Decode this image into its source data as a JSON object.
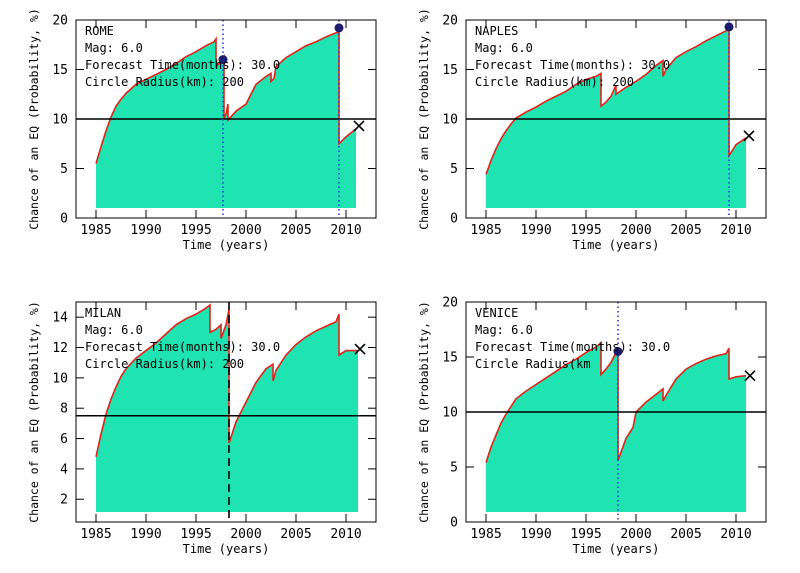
{
  "chart_data": [
    {
      "type": "area",
      "xlabel": "Time (years)",
      "ylabel": "Chance of an EQ (Probability, %)",
      "xlim": [
        1983,
        2013
      ],
      "ylim": [
        0,
        20
      ],
      "xticks": [
        1985,
        1990,
        1995,
        2000,
        2005,
        2010
      ],
      "yticks": [
        0,
        5,
        10,
        15,
        20
      ],
      "threshold": 10,
      "annotations": [
        "ROME",
        "Mag: 6.0",
        "Forecast Time(months): 30.0",
        "Circle Radius(km): 200"
      ],
      "series": [
        {
          "x": [
            1985.0,
            1985.5,
            1986.0,
            1986.5,
            1987.0,
            1987.5,
            1988.0,
            1989.0,
            1990.0,
            1991.0,
            1992.0,
            1993.0,
            1994.0,
            1995.0,
            1996.0,
            1996.8,
            1997.0,
            1997.001,
            1997.5,
            1997.6,
            1997.8,
            1997.801,
            1998.0,
            1998.2,
            1998.201,
            1999.0,
            2000.0,
            2001.0,
            2002.0,
            2002.5,
            2002.501,
            2002.8,
            2003.0,
            2004.0,
            2005.0,
            2006.0,
            2007.0,
            2008.0,
            2009.0,
            2009.3,
            2009.301,
            2010.0,
            2011.0
          ],
          "y": [
            5.5,
            7.2,
            8.8,
            10.2,
            11.3,
            12.0,
            12.6,
            13.5,
            14.0,
            14.5,
            15.0,
            15.6,
            16.3,
            16.8,
            17.4,
            17.8,
            18.1,
            15.3,
            15.8,
            16.0,
            16.3,
            10.0,
            10.5,
            11.5,
            9.9,
            10.8,
            11.5,
            13.5,
            14.3,
            14.6,
            13.8,
            14.1,
            15.3,
            16.2,
            16.8,
            17.4,
            17.8,
            18.3,
            18.7,
            18.8,
            7.5,
            8.2,
            9.0
          ]
        }
      ],
      "events": [
        {
          "x": 1997.7,
          "y": 16.0
        },
        {
          "x": 2009.3,
          "y": 19.2
        }
      ],
      "current": {
        "x": 2011.3,
        "y": 9.3
      },
      "event_lines": [
        {
          "x": 1997.7,
          "style": "dotted"
        },
        {
          "x": 2009.3,
          "style": "dotted"
        }
      ]
    },
    {
      "type": "area",
      "xlabel": "Time (years)",
      "ylabel": "Chance of an EQ (Probability, %)",
      "xlim": [
        1983,
        2013
      ],
      "ylim": [
        0,
        20
      ],
      "xticks": [
        1985,
        1990,
        1995,
        2000,
        2005,
        2010
      ],
      "yticks": [
        0,
        5,
        10,
        15,
        20
      ],
      "threshold": 10,
      "annotations": [
        "NAPLES",
        "Mag: 6.0",
        "Forecast Time(months): 30.0",
        "Circle Radius(km): 200"
      ],
      "series": [
        {
          "x": [
            1985.0,
            1985.5,
            1986.0,
            1986.5,
            1987.0,
            1987.5,
            1988.0,
            1989.0,
            1990.0,
            1991.0,
            1992.0,
            1993.0,
            1994.0,
            1995.0,
            1996.0,
            1996.5,
            1996.501,
            1997.0,
            1997.5,
            1998.0,
            1998.001,
            1999.0,
            2000.0,
            2001.0,
            2002.0,
            2002.7,
            2002.701,
            2003.0,
            2004.0,
            2005.0,
            2006.0,
            2007.0,
            2008.0,
            2009.0,
            2009.3,
            2009.301,
            2010.0,
            2011.0
          ],
          "y": [
            4.4,
            5.8,
            7.0,
            8.0,
            8.8,
            9.5,
            10.1,
            10.7,
            11.2,
            11.8,
            12.3,
            12.8,
            13.5,
            14.0,
            14.3,
            14.6,
            11.3,
            11.7,
            12.3,
            13.4,
            12.5,
            13.2,
            13.8,
            14.5,
            15.4,
            15.9,
            14.3,
            15.0,
            16.2,
            16.8,
            17.3,
            17.9,
            18.4,
            18.9,
            19.2,
            6.3,
            7.4,
            8.1
          ]
        }
      ],
      "events": [
        {
          "x": 2009.3,
          "y": 19.3
        }
      ],
      "current": {
        "x": 2011.3,
        "y": 8.3
      },
      "event_lines": [
        {
          "x": 2009.3,
          "style": "dotted"
        }
      ]
    },
    {
      "type": "area",
      "xlabel": "Time (years)",
      "ylabel": "Chance of an EQ (Probability, %)",
      "xlim": [
        1983,
        2013
      ],
      "ylim": [
        0.5,
        15
      ],
      "xticks": [
        1985,
        1990,
        1995,
        2000,
        2005,
        2010
      ],
      "yticks": [
        2,
        4,
        6,
        8,
        10,
        12,
        14
      ],
      "threshold": 7.5,
      "annotations": [
        "MILAN",
        "Mag: 6.0",
        "Forecast Time(months): 30.0",
        "Circle Radius(km): 200"
      ],
      "series": [
        {
          "x": [
            1985.0,
            1985.5,
            1986.0,
            1986.5,
            1987.0,
            1987.5,
            1988.0,
            1989.0,
            1990.0,
            1991.0,
            1992.0,
            1993.0,
            1994.0,
            1995.0,
            1996.0,
            1996.4,
            1996.401,
            1997.0,
            1997.5,
            1997.501,
            1998.0,
            1998.3,
            1998.301,
            1999.0,
            2000.0,
            2001.0,
            2002.0,
            2002.7,
            2002.701,
            2003.0,
            2004.0,
            2005.0,
            2006.0,
            2007.0,
            2008.0,
            2009.0,
            2009.3,
            2009.301,
            2010.0,
            2011.2
          ],
          "y": [
            4.8,
            6.3,
            7.6,
            8.6,
            9.4,
            10.1,
            10.6,
            11.3,
            11.8,
            12.3,
            12.9,
            13.5,
            13.9,
            14.2,
            14.6,
            14.8,
            13.0,
            13.2,
            13.5,
            12.6,
            13.5,
            14.5,
            5.7,
            7.1,
            8.4,
            9.7,
            10.6,
            10.9,
            9.8,
            10.5,
            11.5,
            12.2,
            12.7,
            13.1,
            13.4,
            13.7,
            14.2,
            11.5,
            11.8,
            11.8
          ]
        }
      ],
      "events": [],
      "current": {
        "x": 2011.4,
        "y": 11.9
      },
      "event_lines": [
        {
          "x": 1998.3,
          "style": "dashed"
        }
      ]
    },
    {
      "type": "area",
      "xlabel": "Time (years)",
      "ylabel": "Chance of an EQ (Probability, %)",
      "xlim": [
        1983,
        2013
      ],
      "ylim": [
        0,
        20
      ],
      "xticks": [
        1985,
        1990,
        1995,
        2000,
        2005,
        2010
      ],
      "yticks": [
        0,
        5,
        10,
        15,
        20
      ],
      "threshold": 10,
      "annotations": [
        "VENICE",
        "Mag: 6.0",
        "Forecast Time(months): 30.0",
        "Circle Radius(km"
      ],
      "series": [
        {
          "x": [
            1985.0,
            1985.5,
            1986.0,
            1986.5,
            1987.0,
            1987.5,
            1988.0,
            1989.0,
            1990.0,
            1991.0,
            1992.0,
            1993.0,
            1994.0,
            1995.0,
            1996.0,
            1996.5,
            1996.501,
            1997.0,
            1997.5,
            1998.0,
            1998.2,
            1998.201,
            1999.0,
            1999.7,
            2000.0,
            2001.0,
            2002.0,
            2002.7,
            2002.701,
            2003.0,
            2004.0,
            2005.0,
            2006.0,
            2007.0,
            2008.0,
            2009.0,
            2009.3,
            2009.301,
            2010.0,
            2011.0
          ],
          "y": [
            5.4,
            6.8,
            7.9,
            9.0,
            9.8,
            10.5,
            11.2,
            11.9,
            12.5,
            13.1,
            13.7,
            14.3,
            14.8,
            15.4,
            15.9,
            16.3,
            13.4,
            13.9,
            14.5,
            15.4,
            15.6,
            5.6,
            7.6,
            8.6,
            10.0,
            10.9,
            11.6,
            12.1,
            11.0,
            11.5,
            13.0,
            13.9,
            14.4,
            14.8,
            15.1,
            15.3,
            15.8,
            13.0,
            13.2,
            13.3
          ]
        }
      ],
      "events": [
        {
          "x": 1998.2,
          "y": 15.5
        }
      ],
      "current": {
        "x": 2011.4,
        "y": 13.3
      },
      "event_lines": [
        {
          "x": 1998.2,
          "style": "dotted"
        }
      ]
    }
  ],
  "colors": {
    "fill": "#1fe3b0",
    "curve": "#e0231b",
    "event_marker": "#1c1c6e",
    "dotted_line": "#2740e0",
    "axis": "#000000"
  }
}
